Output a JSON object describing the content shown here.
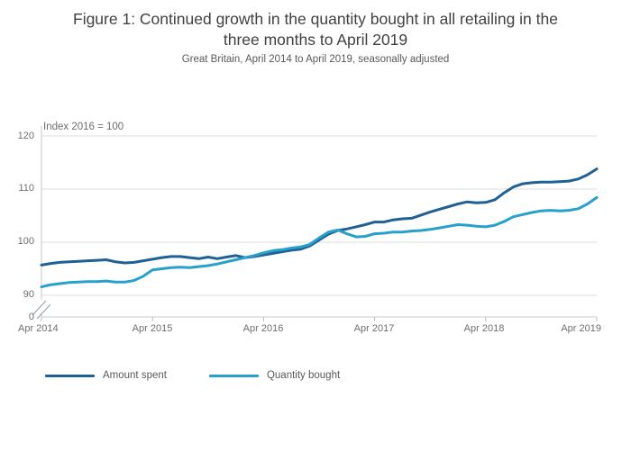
{
  "figure": {
    "title": "Figure 1: Continued growth in the quantity bought in all retailing in the three months to April 2019",
    "title_lines": [
      "Figure 1: Continued growth in the quantity bought in all retailing in the",
      "three months to April 2019"
    ],
    "subtitle": "Great Britain, April 2014 to April 2019, seasonally adjusted"
  },
  "axes": {
    "unit_label": "Index 2016 = 100",
    "y_tick_labels": [
      "120",
      "110",
      "100",
      "90",
      "0"
    ],
    "x_tick_labels": [
      "Apr 2014",
      "Apr 2015",
      "Apr 2016",
      "Apr 2017",
      "Apr 2018",
      "Apr 2019"
    ],
    "axis_break": true
  },
  "legend": {
    "items": [
      {
        "label": "Amount spent"
      },
      {
        "label": "Quantity bought"
      }
    ]
  },
  "chart_data": {
    "type": "line",
    "title": "Figure 1: Continued growth in the quantity bought in all retailing in the three months to April 2019",
    "subtitle": "Great Britain, April 2014 to April 2019, seasonally adjusted",
    "ylabel": "Index 2016 = 100",
    "x_unit": "month",
    "x_start": "Apr 2014",
    "x_end": "Apr 2019",
    "x_tick_labels": [
      "Apr 2014",
      "Apr 2015",
      "Apr 2016",
      "Apr 2017",
      "Apr 2018",
      "Apr 2019"
    ],
    "x_tick_month_indices": [
      0,
      12,
      24,
      36,
      48,
      60
    ],
    "y_ticks": [
      120,
      110,
      100,
      90
    ],
    "ylim_display": [
      90,
      120
    ],
    "y_axis_break_to_zero": true,
    "grid": "horizontal",
    "legend_position": "bottom-left",
    "colors": {
      "grid": "#dcdcdc",
      "y_axis": "#c6c6c6",
      "x_axis": "#c2cdd6",
      "tick": "#b3bfc8",
      "break_mark": "#9aa5ad"
    },
    "series": [
      {
        "name": "Amount spent",
        "color": "#206095",
        "values": [
          95.7,
          96.0,
          96.2,
          96.3,
          96.4,
          96.5,
          96.6,
          96.7,
          96.3,
          96.1,
          96.2,
          96.5,
          96.8,
          97.1,
          97.3,
          97.3,
          97.1,
          96.9,
          97.2,
          96.9,
          97.2,
          97.5,
          97.1,
          97.3,
          97.6,
          97.9,
          98.2,
          98.5,
          98.7,
          99.3,
          100.4,
          101.5,
          102.2,
          102.5,
          102.9,
          103.3,
          103.8,
          103.8,
          104.2,
          104.4,
          104.5,
          105.1,
          105.7,
          106.2,
          106.7,
          107.2,
          107.6,
          107.4,
          107.5,
          108.0,
          109.3,
          110.4,
          111.0,
          111.2,
          111.3,
          111.3,
          111.4,
          111.5,
          111.9,
          112.7,
          113.8
        ]
      },
      {
        "name": "Quantity bought",
        "color": "#27a0cc",
        "values": [
          91.6,
          92.0,
          92.2,
          92.4,
          92.5,
          92.6,
          92.6,
          92.7,
          92.5,
          92.5,
          92.8,
          93.6,
          94.8,
          95.0,
          95.2,
          95.3,
          95.2,
          95.4,
          95.6,
          95.9,
          96.3,
          96.7,
          97.1,
          97.5,
          98.0,
          98.4,
          98.6,
          98.9,
          99.1,
          99.6,
          100.8,
          101.9,
          102.3,
          101.6,
          101.0,
          101.1,
          101.6,
          101.7,
          101.9,
          101.9,
          102.1,
          102.2,
          102.4,
          102.7,
          103.0,
          103.3,
          103.2,
          103.0,
          102.9,
          103.2,
          103.9,
          104.8,
          105.2,
          105.6,
          105.9,
          106.0,
          105.9,
          106.0,
          106.3,
          107.2,
          108.4
        ]
      }
    ]
  }
}
